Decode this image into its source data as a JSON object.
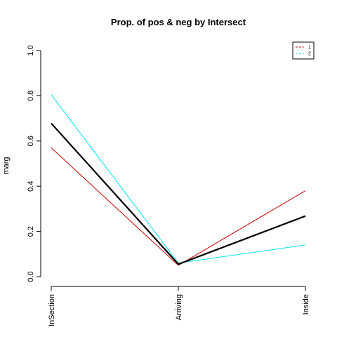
{
  "chart_data": {
    "type": "line",
    "title": "Prop. of pos & neg by Intersect",
    "ylabel": "marg",
    "xlabel": "",
    "categories": [
      "InSection",
      "Arriving",
      "Inside"
    ],
    "yticks": [
      "0.0",
      "0.2",
      "0.4",
      "0.6",
      "0.8",
      "1.0"
    ],
    "ylim": [
      0,
      1
    ],
    "grid": false,
    "legend_position": "top-right",
    "series": [
      {
        "name": "1",
        "color": "#CD0000",
        "values": [
          0.57,
          0.05,
          0.38
        ],
        "legend": true
      },
      {
        "name": "2",
        "color": "#00E5EE",
        "values": [
          0.805,
          0.06,
          0.14
        ],
        "legend": true
      },
      {
        "name": "",
        "color": "#000000",
        "values": [
          0.678,
          0.055,
          0.268
        ],
        "legend": false
      }
    ]
  }
}
